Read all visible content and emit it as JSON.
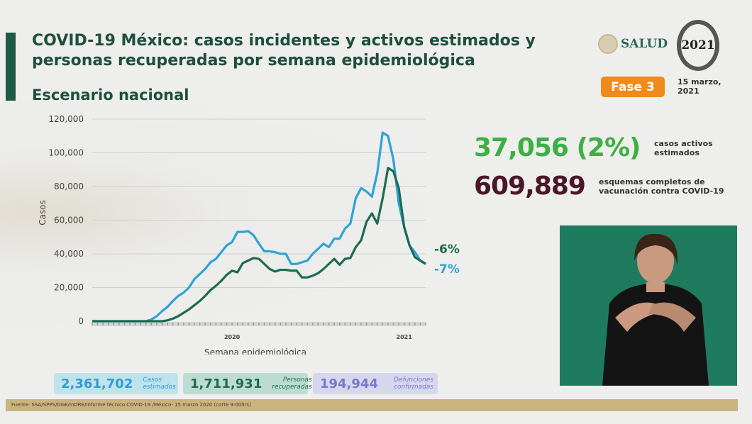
{
  "header": {
    "title": "COVID-19 México: casos incidentes y activos estimados y personas recuperadas por semana epidemiológica",
    "subtitle": "Escenario nacional",
    "logo_salud": "SALUD",
    "logo_2021": "2021",
    "phase": "Fase 3",
    "date": "15 marzo, 2021"
  },
  "kpis": [
    {
      "value": "37,056 (2%)",
      "label": "casos activos estimados",
      "color": "#3cb043"
    },
    {
      "value": "609,889",
      "label": "esquemas completos de vacunación contra COVID-19",
      "color": "#4a1728"
    }
  ],
  "summary": [
    {
      "value": "2,361,702",
      "label": "Casos estimados",
      "color": "#2b9fd0",
      "bg": "#bfe2ec"
    },
    {
      "value": "1,711,931",
      "label": "Personas recuperadas",
      "color": "#1d6b50",
      "bg": "#bcdcd1"
    },
    {
      "value": "194,944",
      "label": "Defunciones confirmadas",
      "color": "#7b78c8",
      "bg": "#d6d6ee"
    }
  ],
  "footer": "Fuente: SSA/SPPS/DGE/InDRE/Informe técnico.COVID-19 /México- 15 marzo 2020 (corte 9:00hrs)",
  "chart_data": {
    "type": "line",
    "xlabel": "Semana epidemiológica",
    "ylabel": "Casos",
    "ylim": [
      0,
      120000
    ],
    "yticks": [
      "0",
      "20,000",
      "40,000",
      "60,000",
      "80,000",
      "100,000",
      "120,000"
    ],
    "year_labels": [
      {
        "label": "2020",
        "week_index": 26
      },
      {
        "label": "2021",
        "week_index": 58
      }
    ],
    "grid": true,
    "series": [
      {
        "color": "#2ea3d6",
        "annotation": "-7%",
        "values": [
          0,
          0,
          0,
          0,
          0,
          0,
          0,
          0,
          0,
          0,
          0,
          1000,
          3000,
          6000,
          8500,
          12000,
          15000,
          17000,
          20000,
          25000,
          28000,
          31000,
          35000,
          37000,
          41000,
          45000,
          47000,
          53000,
          53000,
          53500,
          51000,
          46000,
          41500,
          41500,
          41000,
          40000,
          40000,
          34000,
          34000,
          35000,
          36000,
          40000,
          43000,
          46000,
          44000,
          49000,
          49000,
          55000,
          58000,
          73000,
          79000,
          77000,
          74000,
          88000,
          112000,
          110000,
          96000,
          70000,
          56000,
          45000,
          41000,
          36000,
          34000
        ]
      },
      {
        "color": "#1b6b52",
        "annotation": "-6%",
        "values": [
          0,
          0,
          0,
          0,
          0,
          0,
          0,
          0,
          0,
          0,
          0,
          0,
          0,
          0,
          500,
          1500,
          3000,
          5000,
          7000,
          9500,
          12000,
          15000,
          18500,
          21000,
          24000,
          27500,
          30000,
          29000,
          34500,
          36000,
          37500,
          37000,
          34000,
          31000,
          29500,
          30500,
          30500,
          30000,
          30000,
          26000,
          26000,
          27000,
          28500,
          31000,
          34000,
          37000,
          33500,
          37000,
          37500,
          44000,
          48000,
          59000,
          64000,
          58000,
          73000,
          91000,
          89000,
          79000,
          56000,
          45000,
          38000,
          36000,
          34000
        ]
      }
    ]
  }
}
